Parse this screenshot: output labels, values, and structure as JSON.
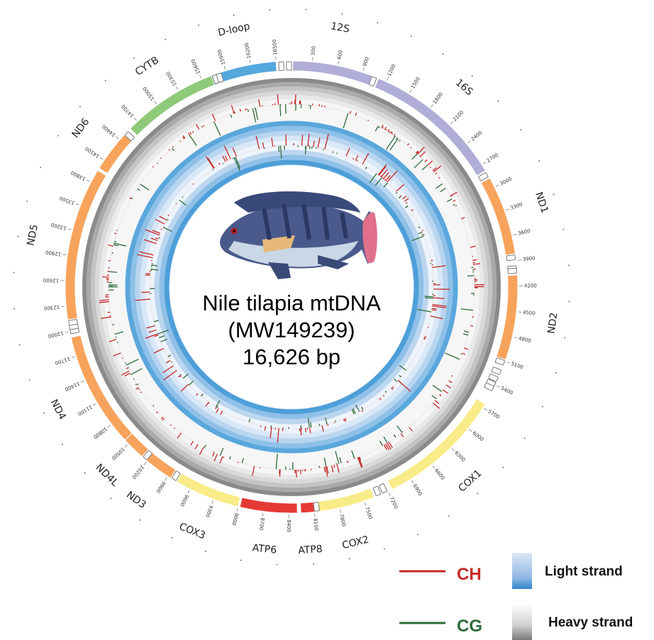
{
  "center": {
    "title_line1": "Nile tilapia mtDNA",
    "title_line2": "(MW149239)",
    "title_line3": "16,626 bp"
  },
  "genome_length": 16626,
  "genes": [
    {
      "name": "D-loop",
      "start": 15700,
      "end": 16500,
      "color": "#55a8dc"
    },
    {
      "name": "12S",
      "start": 70,
      "end": 1020,
      "color": "#b0add8"
    },
    {
      "name": "16S",
      "start": 1100,
      "end": 2780,
      "color": "#b0add8"
    },
    {
      "name": "ND1",
      "start": 2880,
      "end": 3820,
      "color": "#f7a35c"
    },
    {
      "name": "ND2",
      "start": 4070,
      "end": 5080,
      "color": "#f7a35c"
    },
    {
      "name": "COX1",
      "start": 5650,
      "end": 7150,
      "color": "#f9eb87"
    },
    {
      "name": "COX2",
      "start": 7380,
      "end": 8060,
      "color": "#f9eb87"
    },
    {
      "name": "ATP8",
      "start": 8100,
      "end": 8260,
      "color": "#e53935"
    },
    {
      "name": "ATP6",
      "start": 8300,
      "end": 8980,
      "color": "#e53935"
    },
    {
      "name": "COX3",
      "start": 9000,
      "end": 9780,
      "color": "#f9eb87"
    },
    {
      "name": "ND3",
      "start": 9860,
      "end": 10210,
      "color": "#f7a35c"
    },
    {
      "name": "ND4L",
      "start": 10280,
      "end": 10560,
      "color": "#f7a35c"
    },
    {
      "name": "ND4",
      "start": 10560,
      "end": 11930,
      "color": "#f7a35c"
    },
    {
      "name": "ND5",
      "start": 12140,
      "end": 13960,
      "color": "#f7a35c"
    },
    {
      "name": "ND6",
      "start": 13990,
      "end": 14480,
      "color": "#f7a35c"
    },
    {
      "name": "CYTB",
      "start": 14580,
      "end": 15720,
      "color": "#8fc97a"
    }
  ],
  "gene_labels": [
    "D-loop",
    "12S",
    "16S",
    "ND1",
    "ND2",
    "COX1",
    "COX2",
    "ATP8",
    "ATP6",
    "COX3",
    "ND3",
    "ND4L",
    "ND4",
    "ND5",
    "ND6",
    "CYTB"
  ],
  "trnas": [
    25,
    1050,
    2830,
    3860,
    3990,
    4020,
    5120,
    5240,
    5330,
    5400,
    5450,
    7240,
    7320,
    8070,
    9820,
    10240,
    12000,
    12050,
    12100,
    14510,
    15760,
    15810,
    16560
  ],
  "ticks": [
    "300",
    "600",
    "900",
    "1200",
    "1500",
    "1800",
    "2100",
    "2400",
    "2700",
    "3000",
    "3300",
    "3600",
    "3900",
    "4200",
    "4500",
    "4800",
    "5100",
    "5400",
    "5700",
    "6000",
    "6300",
    "6600",
    "6900",
    "7200",
    "7500",
    "7800",
    "8100",
    "8400",
    "8700",
    "9000",
    "9300",
    "9600",
    "9900",
    "10200",
    "10500",
    "10800",
    "11100",
    "11400",
    "11700",
    "12000",
    "12300",
    "12600",
    "12900",
    "13200",
    "13500",
    "13800",
    "14100",
    "14400",
    "14700",
    "15000",
    "15300",
    "15600",
    "15900",
    "16200",
    "16500"
  ],
  "legend": {
    "ch_label": "CH",
    "cg_label": "CG",
    "light_label": "Light strand",
    "heavy_label": "Heavy strand",
    "ch_color": "#c62828",
    "cg_color": "#2e6b3a"
  }
}
